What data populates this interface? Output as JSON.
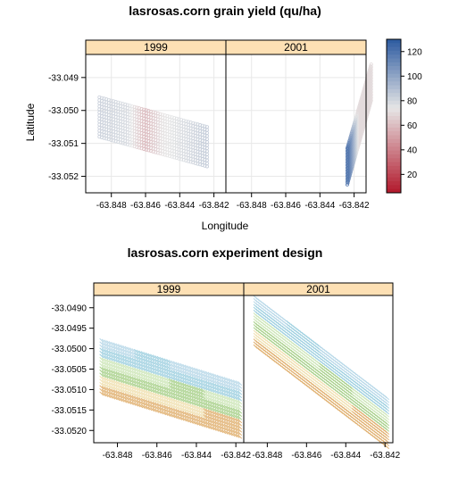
{
  "chart_data": [
    {
      "type": "scatter",
      "title": "lasrosas.corn grain yield (qu/ha)",
      "xlabel": "Longitude",
      "ylabel": "Latitude",
      "panels": [
        "1999",
        "2001"
      ],
      "xticks": [
        "-63.848",
        "-63.846",
        "-63.844",
        "-63.842"
      ],
      "yticks": [
        "-33.049",
        "-33.050",
        "-33.051",
        "-33.052"
      ],
      "xlim": [
        -63.8495,
        -63.8413
      ],
      "ylim": [
        -33.0525,
        -33.0483
      ],
      "colorbar_ticks": [
        "120",
        "100",
        "80",
        "60",
        "40",
        "20"
      ],
      "colorbar_range": [
        5,
        130
      ],
      "colors": {
        "low": "#b2182b",
        "mid": "#e6e6e6",
        "high": "#2c5aa0",
        "strip": "#fde0b4"
      },
      "series": [
        {
          "name": "1999",
          "strip": {
            "start": [
              -63.8487,
              -33.0502
            ],
            "end": [
              -63.8424,
              -33.0511
            ],
            "width_lat": 0.0012
          },
          "yield_profile": [
            [
              -63.8487,
              82
            ],
            [
              -63.847,
              78
            ],
            [
              -63.846,
              58
            ],
            [
              -63.845,
              72
            ],
            [
              -63.8424,
              84
            ]
          ]
        },
        {
          "name": "2001",
          "strip": {
            "start": [
              -63.841,
              -33.04915
            ],
            "end": [
              -63.8424,
              -33.0517
            ],
            "width_lat": 0.0011
          },
          "yield_profile": [
            [
              -63.8418,
              70
            ],
            [
              -63.8465,
              45
            ],
            [
              -63.846,
              35
            ],
            [
              -63.845,
              100
            ],
            [
              -63.8424,
              118
            ]
          ]
        }
      ]
    },
    {
      "type": "scatter",
      "title": "lasrosas.corn experiment design",
      "xlabel": "",
      "ylabel": "",
      "panels": [
        "1999",
        "2001"
      ],
      "xticks": [
        "-63.848",
        "-63.846",
        "-63.844",
        "-63.842"
      ],
      "yticks": [
        "-33.0490",
        "-33.0495",
        "-33.0500",
        "-33.0505",
        "-33.0510",
        "-33.0515",
        "-33.0520"
      ],
      "xlim": [
        -63.8492,
        -63.8416
      ],
      "ylim": [
        -33.0523,
        -33.0487
      ],
      "treatment_colors": [
        "#b8d8e8",
        "#9fd0e0",
        "#cde6b8",
        "#a8d08a",
        "#f0e0b0",
        "#e0b070"
      ],
      "series": [
        {
          "name": "1999",
          "strip": {
            "start": [
              -63.8488,
              -33.05045
            ],
            "end": [
              -63.8418,
              -33.0515
            ],
            "width_lat": 0.0013
          }
        },
        {
          "name": "2001",
          "strip": {
            "start": [
              -63.8486,
              -33.04935
            ],
            "end": [
              -63.8419,
              -33.0518
            ],
            "width_lat": 0.0012
          }
        }
      ]
    }
  ]
}
